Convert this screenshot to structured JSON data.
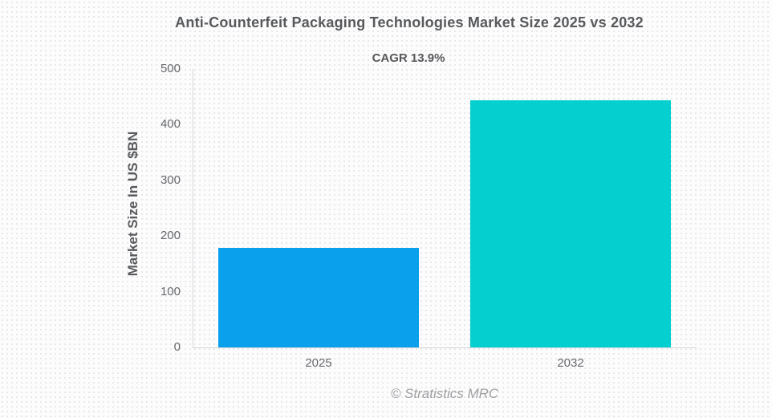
{
  "chart_data": {
    "type": "bar",
    "title": "Anti-Counterfeit Packaging Technologies Market Size 2025 vs 2032",
    "subtitle": "CAGR 13.9%",
    "categories": [
      "2025",
      "2032"
    ],
    "values": [
      178,
      444
    ],
    "unit": "US $BN",
    "xlabel": "",
    "ylabel": "Market Size In US $BN",
    "ylim": [
      0,
      500
    ],
    "yticks": [
      0,
      100,
      200,
      300,
      400,
      500
    ],
    "grid": false,
    "legend": false,
    "bar_colors": [
      "#0aa0eb",
      "#06cfcf"
    ],
    "footer": "© Stratistics MRC"
  },
  "colors": {
    "background": "#fcfcfd",
    "dot_pattern": "#e2e4e7",
    "title_text": "#58595b",
    "axis_text": "#66676a",
    "axis_line": "#d6d8da",
    "footer_text": "#9fa0a2"
  }
}
